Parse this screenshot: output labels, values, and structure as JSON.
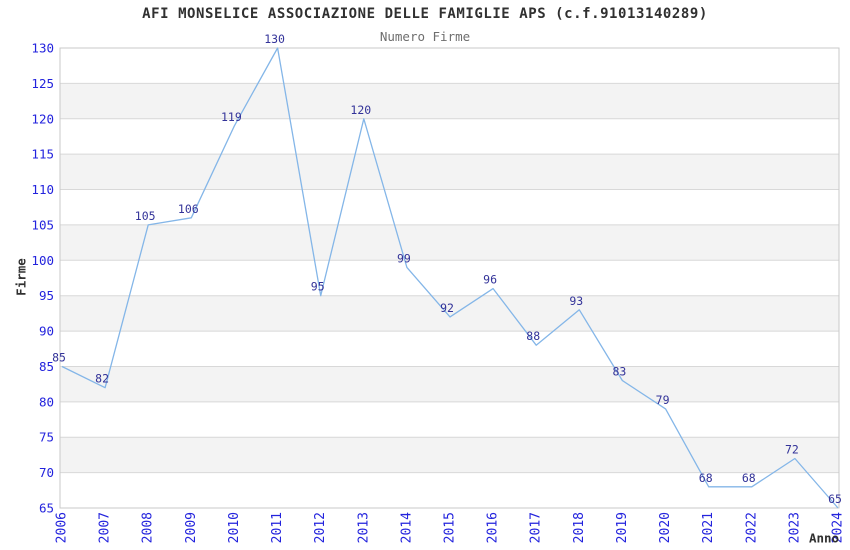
{
  "header": {
    "title": "AFI MONSELICE ASSOCIAZIONE DELLE FAMIGLIE APS (c.f.91013140289)",
    "subtitle": "Numero Firme"
  },
  "chart_data": {
    "type": "line",
    "title": "AFI MONSELICE ASSOCIAZIONE DELLE FAMIGLIE APS (c.f.91013140289)",
    "subtitle": "Numero Firme",
    "xlabel": "Anno",
    "ylabel": "Firme",
    "categories": [
      "2006",
      "2007",
      "2008",
      "2009",
      "2010",
      "2011",
      "2012",
      "2013",
      "2014",
      "2015",
      "2016",
      "2017",
      "2018",
      "2019",
      "2020",
      "2021",
      "2022",
      "2023",
      "2024"
    ],
    "values": [
      85,
      82,
      105,
      106,
      119,
      130,
      95,
      120,
      99,
      92,
      96,
      88,
      93,
      83,
      79,
      68,
      68,
      72,
      65
    ],
    "ylim": [
      65,
      130
    ],
    "y_ticks": [
      65,
      70,
      75,
      80,
      85,
      90,
      95,
      100,
      105,
      110,
      115,
      120,
      125,
      130
    ],
    "grid": "horizontal gridlines with alternating gray bands every 5 units",
    "legend_position": "none",
    "data_labels": true,
    "x_tick_rotation": -90
  },
  "colors": {
    "line": "#84b6e8",
    "tick_labels": "#2323dd",
    "data_labels": "#333399",
    "grid_line": "#d8d8d8",
    "band_fill": "#f3f3f3",
    "plot_border": "#c9c9c9",
    "title": "#303030",
    "subtitle": "#6e6e6e",
    "axis_titles": "#303030",
    "background": "#ffffff"
  }
}
